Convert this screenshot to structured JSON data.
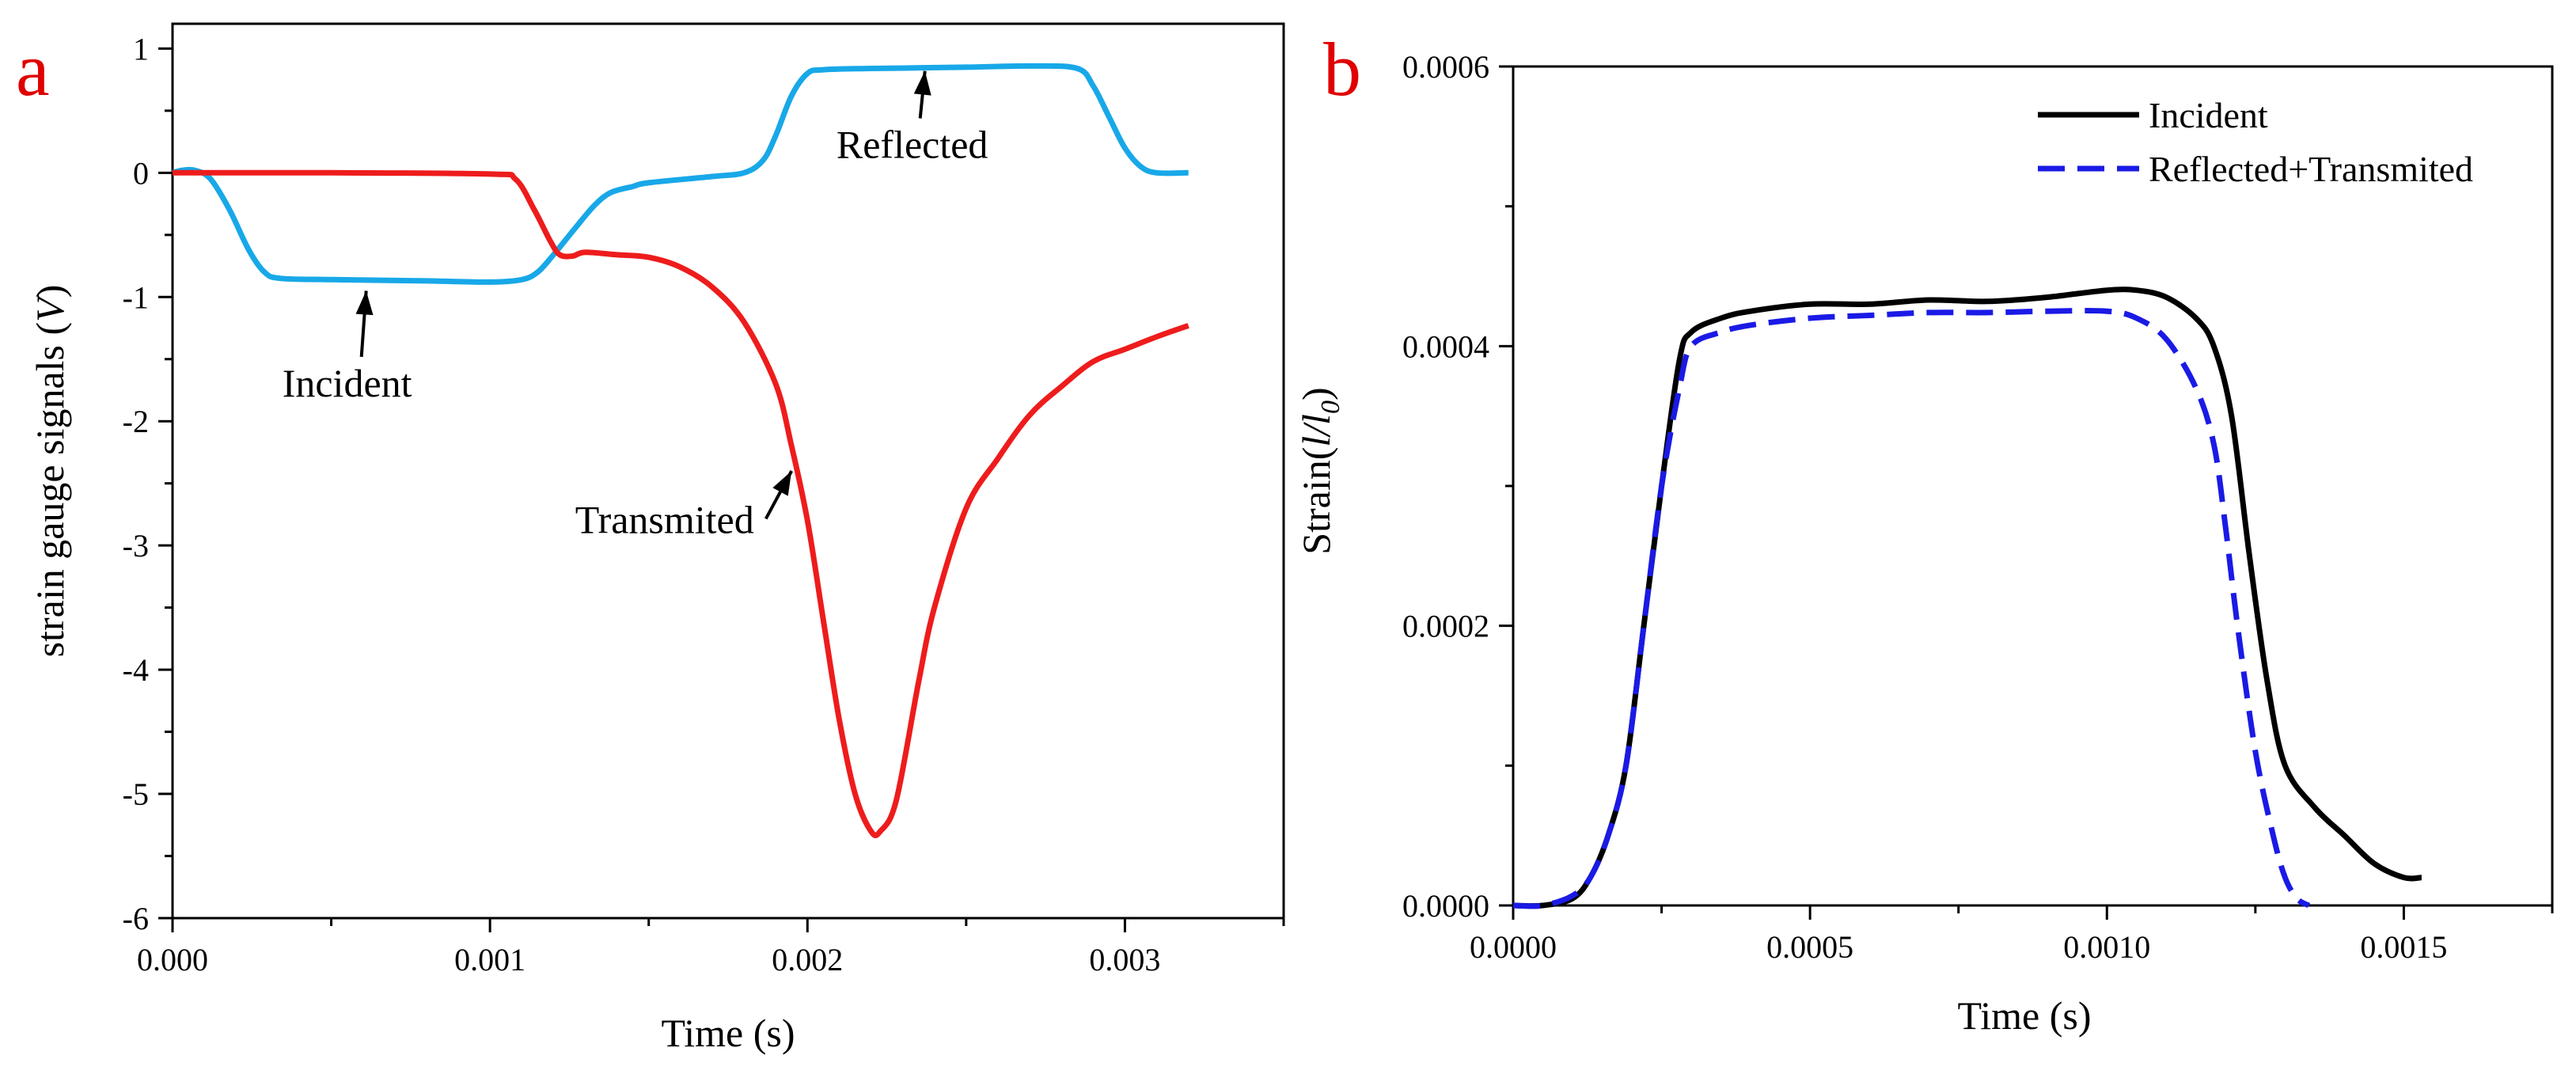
{
  "chart_data": [
    {
      "panel_label": "a",
      "type": "line",
      "xlabel": "Time (s)",
      "ylabel_main": "strain gauge signals (",
      "ylabel_italic": "V",
      "ylabel_close": ")",
      "xlim": [
        0,
        0.0035
      ],
      "ylim": [
        -6,
        1.2
      ],
      "x_ticks": [
        0,
        0.001,
        0.002,
        0.003
      ],
      "x_tick_labels": [
        "0.000",
        "0.001",
        "0.002",
        "0.003"
      ],
      "y_ticks": [
        1,
        0,
        -1,
        -2,
        -3,
        -4,
        -5,
        -6
      ],
      "y_tick_labels": [
        "1",
        "0",
        "-1",
        "-2",
        "-3",
        "-4",
        "-5",
        "-6"
      ],
      "grid": false,
      "series": [
        {
          "name": "Incident/Reflected",
          "color": "#18a8e8",
          "dash": "solid",
          "points": [
            [
              0,
              0
            ],
            [
              3e-05,
              0.02
            ],
            [
              7e-05,
              0.02
            ],
            [
              0.00012,
              -0.05
            ],
            [
              0.00018,
              -0.3
            ],
            [
              0.00024,
              -0.62
            ],
            [
              0.00029,
              -0.8
            ],
            [
              0.00034,
              -0.85
            ],
            [
              0.0005,
              -0.86
            ],
            [
              0.0008,
              -0.87
            ],
            [
              0.001,
              -0.88
            ],
            [
              0.0011,
              -0.86
            ],
            [
              0.00115,
              -0.8
            ],
            [
              0.0012,
              -0.66
            ],
            [
              0.00127,
              -0.44
            ],
            [
              0.00133,
              -0.26
            ],
            [
              0.00138,
              -0.16
            ],
            [
              0.00145,
              -0.11
            ],
            [
              0.0015,
              -0.08
            ],
            [
              0.0017,
              -0.03
            ],
            [
              0.0018,
              0.0
            ],
            [
              0.00186,
              0.1
            ],
            [
              0.0019,
              0.3
            ],
            [
              0.00195,
              0.62
            ],
            [
              0.002,
              0.8
            ],
            [
              0.00205,
              0.83
            ],
            [
              0.0022,
              0.84
            ],
            [
              0.0025,
              0.85
            ],
            [
              0.0027,
              0.86
            ],
            [
              0.00285,
              0.84
            ],
            [
              0.0029,
              0.7
            ],
            [
              0.00295,
              0.45
            ],
            [
              0.003,
              0.2
            ],
            [
              0.00305,
              0.05
            ],
            [
              0.0031,
              0.0
            ],
            [
              0.0032,
              0.0
            ]
          ]
        },
        {
          "name": "Transmited",
          "color": "#ee1c1c",
          "dash": "solid",
          "points": [
            [
              0,
              0
            ],
            [
              0.0005,
              0
            ],
            [
              0.001,
              -0.01
            ],
            [
              0.00108,
              -0.05
            ],
            [
              0.00114,
              -0.3
            ],
            [
              0.00119,
              -0.55
            ],
            [
              0.00122,
              -0.66
            ],
            [
              0.00126,
              -0.67
            ],
            [
              0.0013,
              -0.64
            ],
            [
              0.0014,
              -0.66
            ],
            [
              0.0015,
              -0.68
            ],
            [
              0.0016,
              -0.76
            ],
            [
              0.0017,
              -0.92
            ],
            [
              0.0018,
              -1.2
            ],
            [
              0.0019,
              -1.7
            ],
            [
              0.00195,
              -2.2
            ],
            [
              0.002,
              -2.8
            ],
            [
              0.00205,
              -3.6
            ],
            [
              0.0021,
              -4.4
            ],
            [
              0.00215,
              -5.0
            ],
            [
              0.0022,
              -5.3
            ],
            [
              0.00223,
              -5.3
            ],
            [
              0.00228,
              -5.05
            ],
            [
              0.00235,
              -4.1
            ],
            [
              0.0024,
              -3.5
            ],
            [
              0.0025,
              -2.7
            ],
            [
              0.0026,
              -2.3
            ],
            [
              0.0027,
              -1.95
            ],
            [
              0.0028,
              -1.72
            ],
            [
              0.0029,
              -1.52
            ],
            [
              0.003,
              -1.42
            ],
            [
              0.0031,
              -1.32
            ],
            [
              0.0032,
              -1.23
            ]
          ]
        }
      ],
      "annotations": [
        {
          "text": "Incident",
          "anchor": [
            0.00055,
            -1.8
          ],
          "arrow_to": [
            0.00061,
            -0.95
          ]
        },
        {
          "text": "Reflected",
          "anchor": [
            0.00233,
            0.12
          ],
          "arrow_to": [
            0.00237,
            0.82
          ]
        },
        {
          "text": "Transmited",
          "anchor": [
            0.00155,
            -2.9
          ],
          "arrow_to": [
            0.00195,
            -2.4
          ]
        }
      ]
    },
    {
      "panel_label": "b",
      "type": "line",
      "xlabel": "Time (s)",
      "ylabel_main": "Strain(",
      "ylabel_italic": "l/l",
      "ylabel_sub": "0",
      "ylabel_close": ")",
      "xlim": [
        0,
        0.00175
      ],
      "ylim": [
        0,
        0.0006
      ],
      "x_ticks": [
        0,
        0.0005,
        0.001,
        0.0015
      ],
      "x_tick_labels": [
        "0.0000",
        "0.0005",
        "0.0010",
        "0.0015"
      ],
      "y_ticks": [
        0,
        0.0002,
        0.0004,
        0.0006
      ],
      "y_tick_labels": [
        "0.0000",
        "0.0002",
        "0.0004",
        "0.0006"
      ],
      "grid": false,
      "legend_position": "top-right",
      "series": [
        {
          "name": "Incident",
          "color": "#000000",
          "dash": "solid",
          "points": [
            [
              0,
              0
            ],
            [
              5e-05,
              0.0
            ],
            [
              0.0001,
              5e-06
            ],
            [
              0.00013,
              2e-05
            ],
            [
              0.00016,
              5e-05
            ],
            [
              0.00019,
              0.0001
            ],
            [
              0.00022,
              0.0002
            ],
            [
              0.00025,
              0.0003
            ],
            [
              0.00028,
              0.00039
            ],
            [
              0.0003,
              0.00041
            ],
            [
              0.00035,
              0.00042
            ],
            [
              0.0004,
              0.000425
            ],
            [
              0.0005,
              0.00043
            ],
            [
              0.0006,
              0.00043
            ],
            [
              0.0007,
              0.000433
            ],
            [
              0.0008,
              0.000432
            ],
            [
              0.0009,
              0.000435
            ],
            [
              0.001,
              0.00044
            ],
            [
              0.00105,
              0.00044
            ],
            [
              0.0011,
              0.000435
            ],
            [
              0.00115,
              0.00042
            ],
            [
              0.00118,
              0.0004
            ],
            [
              0.00121,
              0.00035
            ],
            [
              0.00124,
              0.00025
            ],
            [
              0.00127,
              0.00016
            ],
            [
              0.0013,
              0.0001
            ],
            [
              0.00135,
              7e-05
            ],
            [
              0.0014,
              5e-05
            ],
            [
              0.00145,
              3e-05
            ],
            [
              0.0015,
              2e-05
            ],
            [
              0.00153,
              2e-05
            ]
          ]
        },
        {
          "name": "Reflected+Transmited",
          "color": "#1a1ae6",
          "dash": "dashed",
          "points": [
            [
              0,
              0
            ],
            [
              5e-05,
              0.0
            ],
            [
              0.0001,
              7e-06
            ],
            [
              0.00013,
              2e-05
            ],
            [
              0.00016,
              5e-05
            ],
            [
              0.00019,
              0.0001
            ],
            [
              0.00022,
              0.0002
            ],
            [
              0.00025,
              0.0003
            ],
            [
              0.00028,
              0.00037
            ],
            [
              0.0003,
              0.0004
            ],
            [
              0.00035,
              0.00041
            ],
            [
              0.0004,
              0.000415
            ],
            [
              0.0005,
              0.00042
            ],
            [
              0.0006,
              0.000422
            ],
            [
              0.0007,
              0.000424
            ],
            [
              0.0008,
              0.000424
            ],
            [
              0.0009,
              0.000425
            ],
            [
              0.001,
              0.000425
            ],
            [
              0.00105,
              0.00042
            ],
            [
              0.0011,
              0.000405
            ],
            [
              0.00115,
              0.00037
            ],
            [
              0.00118,
              0.00033
            ],
            [
              0.0012,
              0.00027
            ],
            [
              0.00122,
              0.0002
            ],
            [
              0.00125,
              0.00011
            ],
            [
              0.00128,
              5e-05
            ],
            [
              0.0013,
              2e-05
            ],
            [
              0.00132,
              5e-06
            ],
            [
              0.00134,
              0.0
            ]
          ]
        }
      ]
    }
  ]
}
